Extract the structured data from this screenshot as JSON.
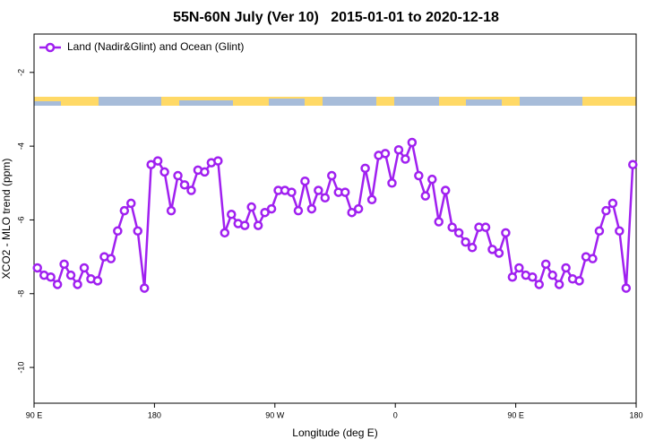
{
  "chart_data": {
    "type": "line",
    "title": "55N-60N July (Ver 10)   2015-01-01 to 2020-12-18",
    "xlabel": "Longitude (deg E)",
    "ylabel": "XCO2 - MLO trend (ppm)",
    "xlim": [
      90,
      540
    ],
    "ylim": [
      -10.97,
      -0.96
    ],
    "xticks": [
      {
        "value": 90,
        "label": "90 E"
      },
      180,
      {
        "value": 270,
        "label": "90 W"
      },
      {
        "value": 360,
        "label": "0"
      },
      {
        "value": 450,
        "label": "90 E"
      },
      {
        "value": 540,
        "label": "180"
      }
    ],
    "yticks": [
      -2,
      -4,
      -6,
      -8,
      -10
    ],
    "legend": "top-left",
    "x": [
      92.5,
      97.5,
      102.5,
      107.5,
      112.5,
      117.5,
      122.5,
      127.5,
      132.5,
      137.5,
      142.5,
      147.5,
      152.5,
      157.5,
      162.5,
      167.5,
      172.5,
      177.5,
      182.5,
      187.5,
      192.5,
      197.5,
      202.5,
      207.5,
      212.5,
      217.5,
      222.5,
      227.5,
      232.5,
      237.5,
      242.5,
      247.5,
      252.5,
      257.5,
      262.5,
      267.5,
      272.5,
      277.5,
      282.5,
      287.5,
      292.5,
      297.5,
      302.5,
      307.5,
      312.5,
      317.5,
      322.5,
      327.5,
      332.5,
      337.5,
      342.5,
      347.5,
      352.5,
      357.5,
      362.5,
      367.5,
      372.5,
      377.5,
      382.5,
      387.5,
      392.5,
      397.5,
      402.5,
      407.5,
      412.5,
      417.5,
      422.5,
      427.5,
      432.5,
      437.5,
      442.5,
      447.5,
      452.5,
      457.5,
      462.5,
      467.5,
      472.5,
      477.5,
      482.5,
      487.5,
      492.5,
      497.5,
      502.5,
      507.5,
      512.5,
      517.5,
      522.5,
      527.5,
      532.5,
      537.5
    ],
    "series": [
      {
        "name": "Land (Nadir&Glint) and Ocean (Glint)",
        "color": "#a020f0",
        "values": [
          -7.3,
          -7.5,
          -7.55,
          -7.75,
          -7.2,
          -7.5,
          -7.75,
          -7.3,
          -7.6,
          -7.65,
          -7.0,
          -7.05,
          -6.3,
          -5.75,
          -5.55,
          -6.3,
          -7.85,
          -4.5,
          -4.4,
          -4.7,
          -5.75,
          -4.8,
          -5.05,
          -5.2,
          -4.65,
          -4.7,
          -4.45,
          -4.4,
          -6.35,
          -5.85,
          -6.1,
          -6.15,
          -5.65,
          -6.15,
          -5.8,
          -5.7,
          -5.2,
          -5.2,
          -5.25,
          -5.75,
          -4.95,
          -5.7,
          -5.2,
          -5.4,
          -4.8,
          -5.25,
          -5.25,
          -5.8,
          -5.7,
          -4.6,
          -5.45,
          -4.25,
          -4.2,
          -5.0,
          -4.1,
          -4.35,
          -3.9,
          -4.8,
          -5.35,
          -4.9,
          -6.05,
          -5.2,
          -6.2,
          -6.35,
          -6.6,
          -6.75,
          -6.2,
          -6.2,
          -6.8,
          -6.9,
          -6.35,
          -7.55,
          -7.3,
          -7.5,
          -7.55,
          -7.75,
          -7.2,
          -7.5,
          -7.75,
          -7.3,
          -7.6,
          -7.65,
          -7.0,
          -7.05,
          -6.3,
          -5.75,
          -5.55,
          -6.3,
          -7.85,
          -4.5
        ]
      }
    ]
  }
}
